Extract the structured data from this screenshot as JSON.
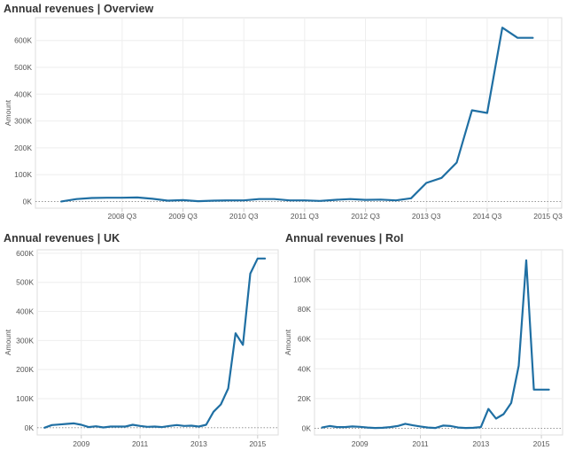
{
  "panels": [
    {
      "title": "Annual revenues | Overview"
    },
    {
      "title": "Annual revenues | UK"
    },
    {
      "title": "Annual revenues | RoI"
    }
  ],
  "colors": {
    "line": "#1f6fa3",
    "grid": "#eeeeee",
    "frame": "#dddddd",
    "zero_line": "#888888"
  },
  "chart_data": [
    {
      "type": "line",
      "title": "Annual revenues | Overview",
      "xlabel": "",
      "ylabel": "Amount",
      "x_ticks": [
        {
          "x": 2008.625,
          "label": "2008 Q3"
        },
        {
          "x": 2009.625,
          "label": "2009 Q3"
        },
        {
          "x": 2010.625,
          "label": "2010 Q3"
        },
        {
          "x": 2011.625,
          "label": "2011 Q3"
        },
        {
          "x": 2012.625,
          "label": "2012 Q3"
        },
        {
          "x": 2013.625,
          "label": "2013 Q3"
        },
        {
          "x": 2014.625,
          "label": "2014 Q3"
        },
        {
          "x": 2015.625,
          "label": "2015 Q3"
        }
      ],
      "y_ticks": [
        {
          "y": 0,
          "label": "0K"
        },
        {
          "y": 100000,
          "label": "100K"
        },
        {
          "y": 200000,
          "label": "200K"
        },
        {
          "y": 300000,
          "label": "300K"
        },
        {
          "y": 400000,
          "label": "400K"
        },
        {
          "y": 500000,
          "label": "500K"
        },
        {
          "y": 600000,
          "label": "600K"
        }
      ],
      "xlim": [
        2007.2,
        2015.85
      ],
      "ylim": [
        -25000,
        685000
      ],
      "grid": true,
      "series": [
        {
          "x": [
            2007.625,
            2007.875,
            2008.125,
            2008.375,
            2008.625,
            2008.875,
            2009.125,
            2009.375,
            2009.625,
            2009.875,
            2010.125,
            2010.375,
            2010.625,
            2010.875,
            2011.125,
            2011.375,
            2011.625,
            2011.875,
            2012.125,
            2012.375,
            2012.625,
            2012.875,
            2013.125,
            2013.375,
            2013.625,
            2013.875,
            2014.125,
            2014.375,
            2014.625,
            2014.875,
            2015.125,
            2015.375
          ],
          "y": [
            0,
            9000,
            13000,
            14000,
            14000,
            15000,
            10000,
            3000,
            5000,
            1000,
            3000,
            4000,
            4000,
            9000,
            9000,
            4000,
            4000,
            2000,
            6000,
            9000,
            6000,
            7000,
            4000,
            12000,
            69000,
            88000,
            145000,
            340000,
            330000,
            648000,
            610000,
            610000
          ]
        }
      ]
    },
    {
      "type": "line",
      "title": "Annual revenues | UK",
      "xlabel": "",
      "ylabel": "Amount",
      "x_ticks": [
        {
          "x": 2009,
          "label": "2009"
        },
        {
          "x": 2011,
          "label": "2011"
        },
        {
          "x": 2013,
          "label": "2013"
        },
        {
          "x": 2015,
          "label": "2015"
        }
      ],
      "y_ticks": [
        {
          "y": 0,
          "label": "0K"
        },
        {
          "y": 100000,
          "label": "100K"
        },
        {
          "y": 200000,
          "label": "200K"
        },
        {
          "y": 300000,
          "label": "300K"
        },
        {
          "y": 400000,
          "label": "400K"
        },
        {
          "y": 500000,
          "label": "500K"
        },
        {
          "y": 600000,
          "label": "600K"
        }
      ],
      "xlim": [
        2007.5,
        2015.7
      ],
      "ylim": [
        -25000,
        612000
      ],
      "grid": true,
      "series": [
        {
          "x": [
            2007.75,
            2008.0,
            2008.25,
            2008.5,
            2008.75,
            2009.0,
            2009.25,
            2009.5,
            2009.75,
            2010.0,
            2010.25,
            2010.5,
            2010.75,
            2011.0,
            2011.25,
            2011.5,
            2011.75,
            2012.0,
            2012.25,
            2012.5,
            2012.75,
            2013.0,
            2013.25,
            2013.5,
            2013.75,
            2014.0,
            2014.25,
            2014.5,
            2014.75,
            2015.0,
            2015.25
          ],
          "y": [
            0,
            9000,
            11000,
            13000,
            15000,
            10000,
            2000,
            5000,
            1000,
            4000,
            4000,
            4000,
            10000,
            6000,
            3000,
            4000,
            2000,
            6000,
            9000,
            6000,
            7000,
            4000,
            10000,
            55000,
            80000,
            135000,
            325000,
            285000,
            530000,
            582000,
            582000
          ]
        }
      ]
    },
    {
      "type": "line",
      "title": "Annual revenues | RoI",
      "xlabel": "",
      "ylabel": "Amount",
      "x_ticks": [
        {
          "x": 2009,
          "label": "2009"
        },
        {
          "x": 2011,
          "label": "2011"
        },
        {
          "x": 2013,
          "label": "2013"
        },
        {
          "x": 2015,
          "label": "2015"
        }
      ],
      "y_ticks": [
        {
          "y": 0,
          "label": "0K"
        },
        {
          "y": 20000,
          "label": "20K"
        },
        {
          "y": 40000,
          "label": "40K"
        },
        {
          "y": 60000,
          "label": "60K"
        },
        {
          "y": 80000,
          "label": "80K"
        },
        {
          "y": 100000,
          "label": "100K"
        }
      ],
      "xlim": [
        2007.5,
        2015.7
      ],
      "ylim": [
        -4500,
        120000
      ],
      "grid": true,
      "series": [
        {
          "x": [
            2007.75,
            2008.0,
            2008.25,
            2008.5,
            2008.75,
            2009.0,
            2009.25,
            2009.5,
            2009.75,
            2010.0,
            2010.25,
            2010.5,
            2010.75,
            2011.0,
            2011.25,
            2011.5,
            2011.75,
            2012.0,
            2012.25,
            2012.5,
            2012.75,
            2013.0,
            2013.25,
            2013.5,
            2013.75,
            2014.0,
            2014.25,
            2014.5,
            2014.75,
            2015.0,
            2015.25
          ],
          "y": [
            500,
            1500,
            800,
            800,
            1200,
            1000,
            500,
            200,
            300,
            800,
            1500,
            3000,
            2000,
            1200,
            500,
            200,
            1800,
            1500,
            500,
            200,
            300,
            800,
            13000,
            6500,
            9500,
            17000,
            42000,
            113000,
            26000,
            26000,
            26000
          ]
        }
      ]
    }
  ]
}
